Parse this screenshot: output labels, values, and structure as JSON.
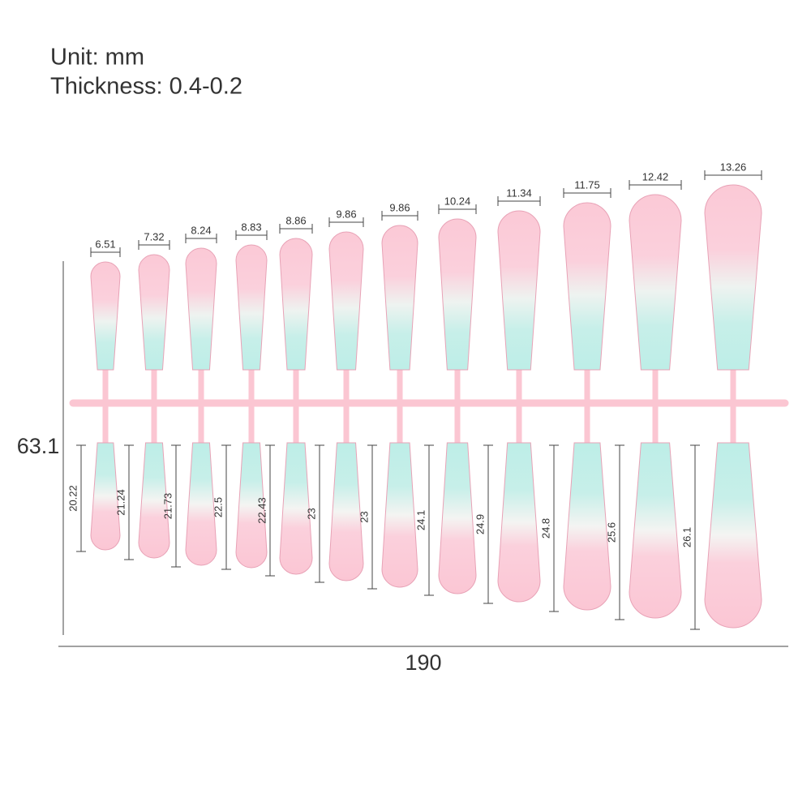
{
  "header": {
    "unit": "Unit: mm",
    "thickness": "Thickness: 0.4-0.2"
  },
  "overall": {
    "height": "63.1",
    "width": "190"
  },
  "nails": {
    "widths": [
      "6.51",
      "7.32",
      "8.24",
      "8.83",
      "8.86",
      "9.86",
      "9.86",
      "10.24",
      "11.34",
      "11.75",
      "12.42",
      "13.26"
    ],
    "lengths": [
      "20.22",
      "21.24",
      "21.73",
      "22.5",
      "22.43",
      "23",
      "23",
      "24.1",
      "24.9",
      "24.8",
      "25.6",
      "26.1"
    ]
  }
}
